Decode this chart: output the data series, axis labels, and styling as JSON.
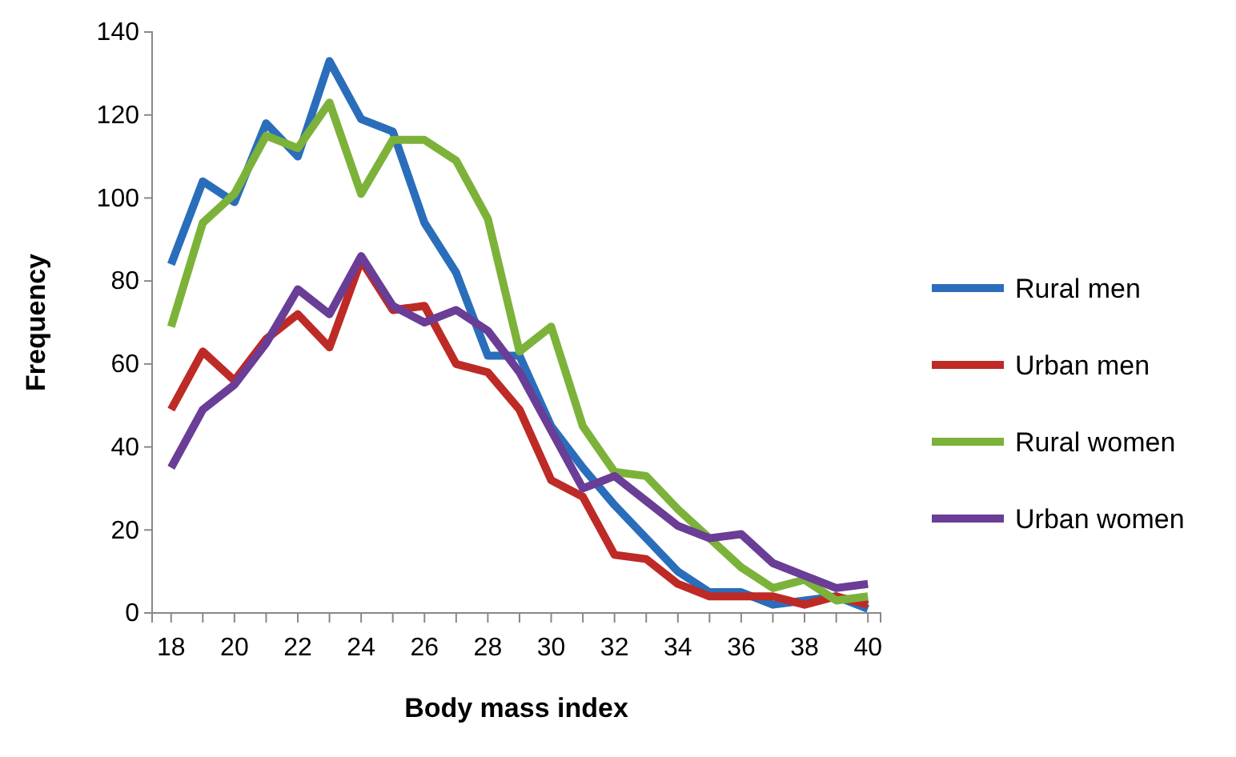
{
  "chart_data": {
    "type": "line",
    "xlabel": "Body mass index",
    "ylabel": "Frequency",
    "x": [
      18,
      19,
      20,
      21,
      22,
      23,
      24,
      25,
      26,
      27,
      28,
      29,
      30,
      31,
      32,
      33,
      34,
      35,
      36,
      37,
      38,
      39,
      40
    ],
    "xlim": [
      17.4,
      40.4
    ],
    "xticks": [
      18,
      {
        "value": 19,
        "label": null
      },
      20,
      {
        "value": 21,
        "label": null
      },
      22,
      {
        "value": 23,
        "label": null
      },
      24,
      {
        "value": 25,
        "label": null
      },
      26,
      {
        "value": 27,
        "label": null
      },
      28,
      {
        "value": 29,
        "label": null
      },
      30,
      {
        "value": 31,
        "label": null
      },
      32,
      {
        "value": 33,
        "label": null
      },
      34,
      {
        "value": 35,
        "label": null
      },
      36,
      {
        "value": 37,
        "label": null
      },
      38,
      {
        "value": 39,
        "label": null
      },
      40
    ],
    "ylim": [
      0,
      140
    ],
    "yticks": [
      0,
      20,
      40,
      60,
      80,
      100,
      120,
      140
    ],
    "grid": false,
    "legend": "right",
    "line_style": "solid",
    "marker": "none",
    "series": [
      {
        "name": "Rural men",
        "color": "#2a6ebb",
        "values": [
          84,
          104,
          99,
          118,
          110,
          133,
          119,
          116,
          94,
          82,
          62,
          62,
          45,
          35,
          26,
          18,
          10,
          5,
          5,
          2,
          3,
          4,
          1
        ]
      },
      {
        "name": "Urban men",
        "color": "#be2a26",
        "values": [
          49,
          63,
          56,
          66,
          72,
          64,
          85,
          73,
          74,
          60,
          58,
          49,
          32,
          28,
          14,
          13,
          7,
          4,
          4,
          4,
          2,
          4,
          2
        ]
      },
      {
        "name": "Rural women",
        "color": "#7cb23a",
        "values": [
          69,
          94,
          101,
          115,
          112,
          123,
          101,
          114,
          114,
          109,
          95,
          63,
          69,
          45,
          34,
          33,
          25,
          18,
          11,
          6,
          8,
          3,
          4
        ]
      },
      {
        "name": "Urban women",
        "color": "#6a3d96",
        "values": [
          35,
          49,
          55,
          65,
          78,
          72,
          86,
          74,
          70,
          73,
          68,
          58,
          44,
          30,
          33,
          27,
          21,
          18,
          19,
          12,
          9,
          6,
          7
        ]
      }
    ]
  }
}
